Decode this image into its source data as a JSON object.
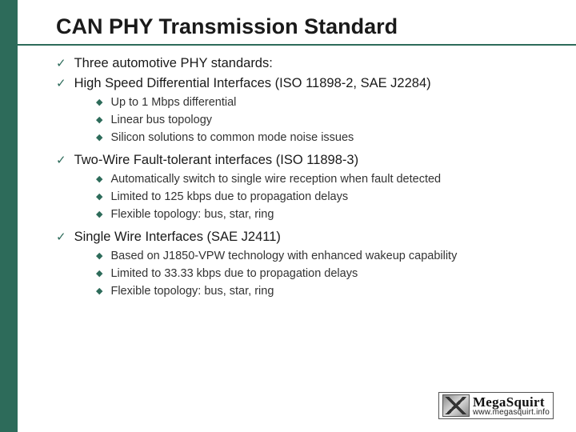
{
  "title": "CAN PHY Transmission Standard",
  "items": {
    "c0": "Three automotive PHY standards:",
    "c1": "High Speed Differential Interfaces (ISO 11898-2, SAE J2284)",
    "c1sub": {
      "s0": "Up to 1 Mbps differential",
      "s1": "Linear bus topology",
      "s2": "Silicon solutions to common mode noise issues"
    },
    "c2": "Two-Wire Fault-tolerant interfaces (ISO 11898-3)",
    "c2sub": {
      "s0": "Automatically switch to single wire reception when fault detected",
      "s1": "Limited to 125 kbps due to propagation delays",
      "s2": "Flexible topology: bus, star, ring"
    },
    "c3": "Single Wire Interfaces (SAE J2411)",
    "c3sub": {
      "s0": "Based on J1850-VPW technology with enhanced wakeup capability",
      "s1": "Limited to 33.33 kbps due to propagation delays",
      "s2": "Flexible topology: bus, star, ring"
    }
  },
  "logo": {
    "name": "MegaSquirt",
    "url": "www.megasquirt.info"
  },
  "colors": {
    "accent": "#2d6b5a",
    "text": "#1a1a1a",
    "subtext": "#333333",
    "background": "#ffffff"
  }
}
